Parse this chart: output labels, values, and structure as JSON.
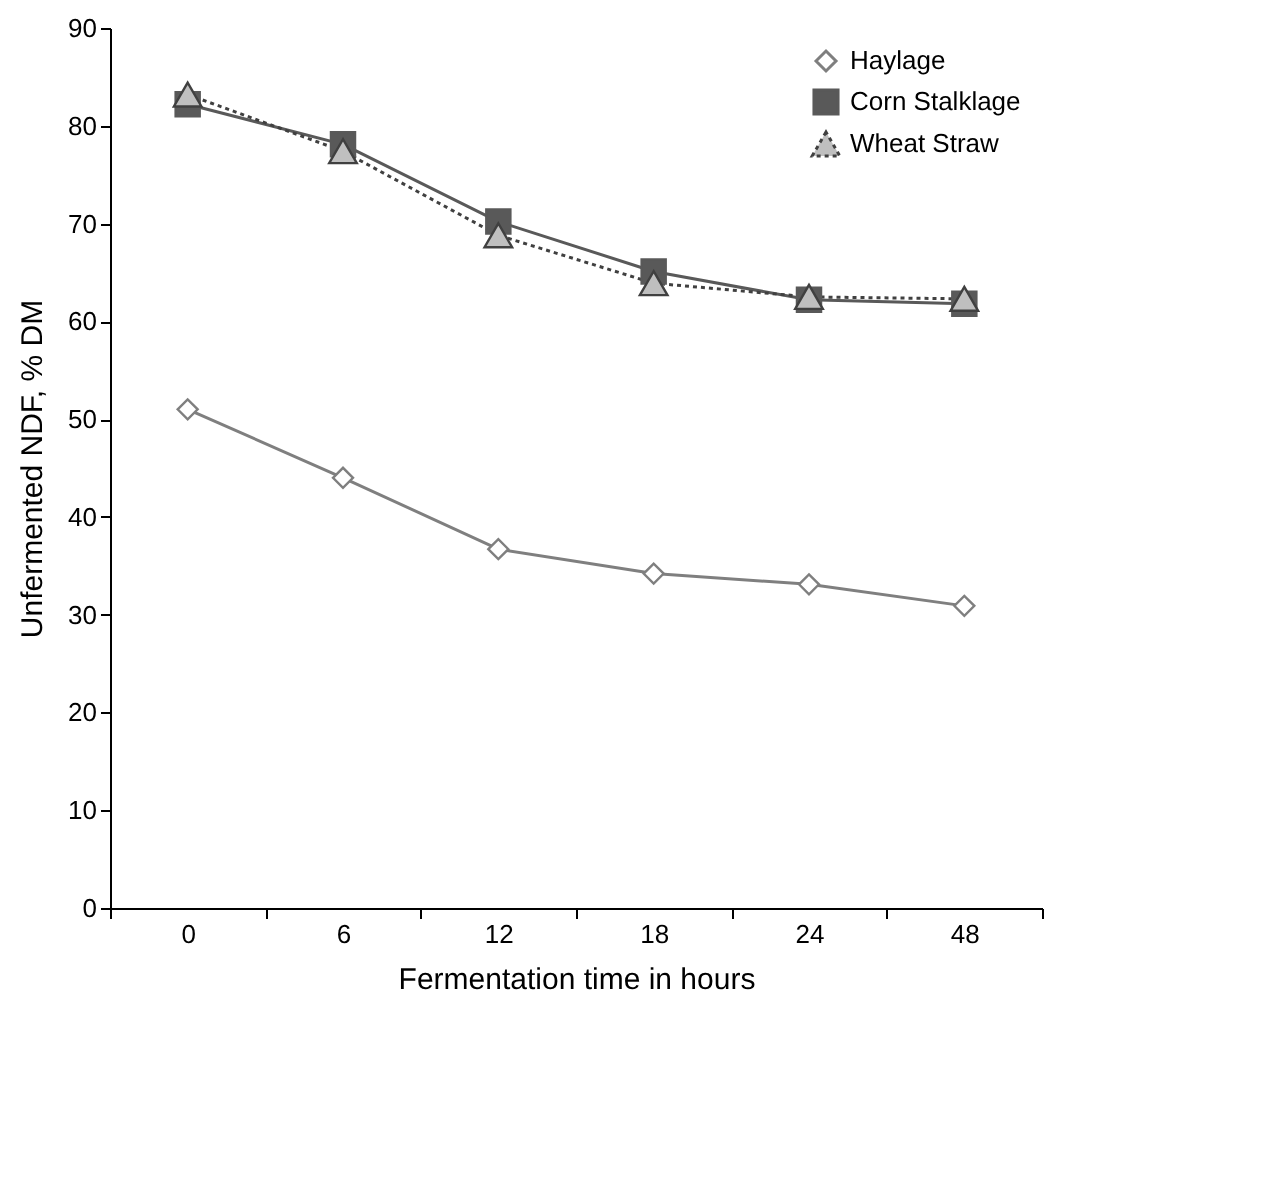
{
  "chart_data": {
    "type": "line",
    "xlabel": "Fermentation time in hours",
    "ylabel": "Unfermented NDF, % DM",
    "categories": [
      "0",
      "6",
      "12",
      "18",
      "24",
      "48"
    ],
    "series": [
      {
        "name": "Haylage",
        "color": "#7f7f7f",
        "marker": "diamond",
        "line_style": "solid",
        "values": [
          51.0,
          44.0,
          36.7,
          34.2,
          33.1,
          30.9
        ]
      },
      {
        "name": "Corn Stalklage",
        "color": "#595959",
        "marker": "square",
        "line_style": "solid",
        "values": [
          82.2,
          78.1,
          70.2,
          65.1,
          62.2,
          61.8
        ]
      },
      {
        "name": "Wheat Straw",
        "color": "#404040",
        "marker": "triangle",
        "line_style": "dotted",
        "values": [
          83.2,
          77.4,
          68.8,
          63.9,
          62.5,
          62.3
        ]
      }
    ],
    "ylim": [
      0,
      90
    ],
    "yticks": [
      0,
      10,
      20,
      30,
      40,
      50,
      60,
      70,
      80,
      90
    ],
    "grid": false,
    "legend": "top right"
  }
}
